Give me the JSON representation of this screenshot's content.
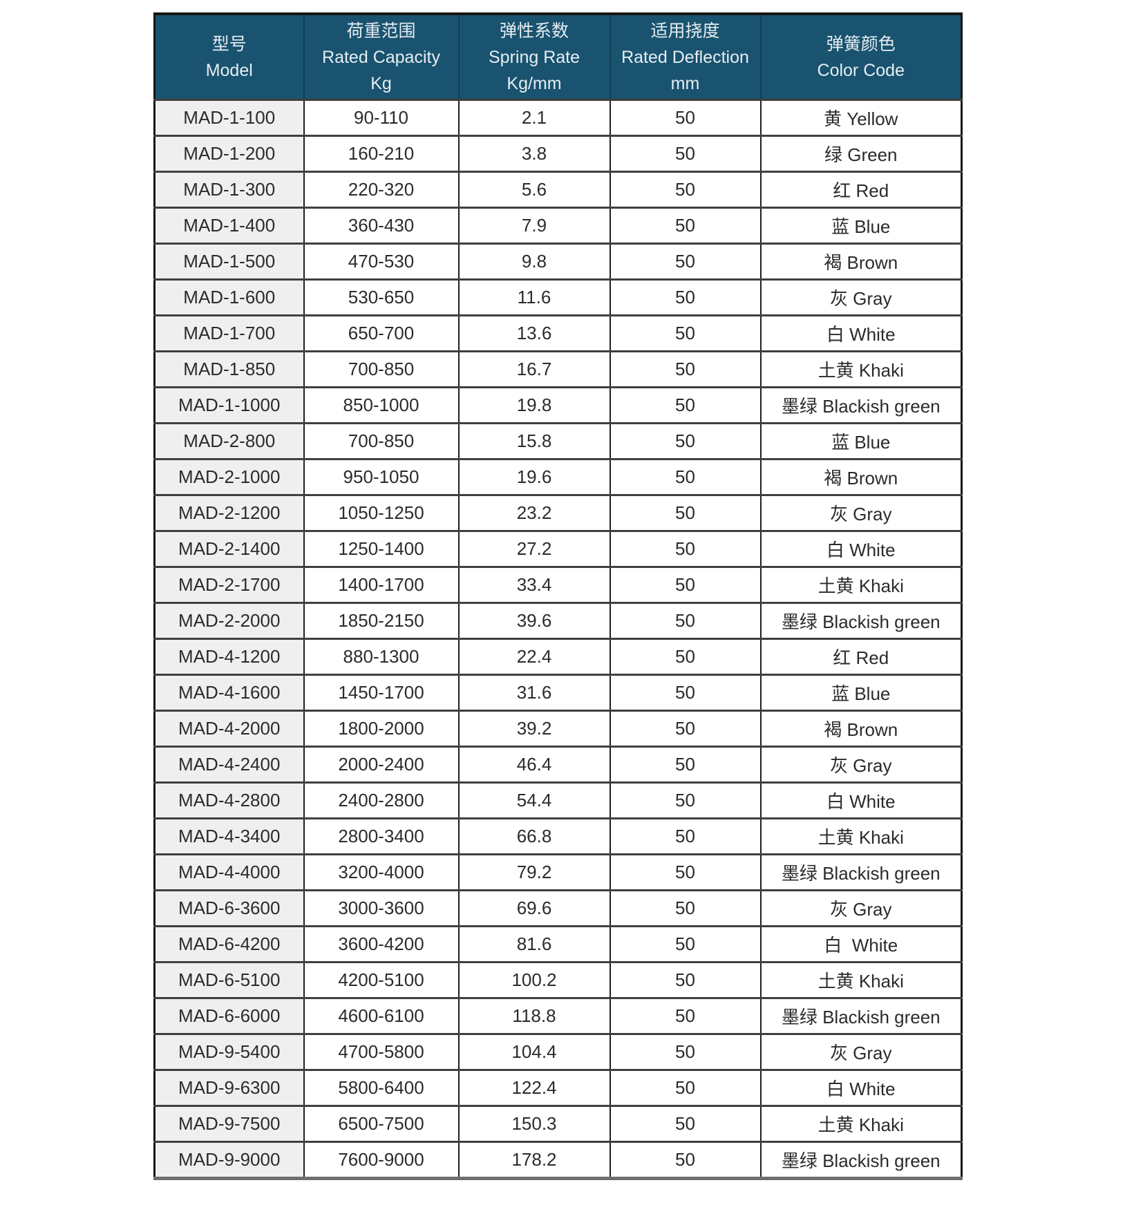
{
  "colors": {
    "header_bg": "#19536f",
    "header_text": "#e6edf2",
    "model_col_bg": "#efefef",
    "cell_bg": "#ffffff",
    "cell_text": "#2b2b2b",
    "grid_vertical": "#1f1f1f",
    "grid_horizontal": "#3f3f3f",
    "outer_border": "#161616",
    "bottom_border": "#6e6e6e"
  },
  "table": {
    "header": {
      "columns": [
        {
          "zh": "型号",
          "en": "Model",
          "unit": ""
        },
        {
          "zh": "荷重范围",
          "en": "Rated Capacity",
          "unit": "Kg"
        },
        {
          "zh": "弹性系数",
          "en": "Spring Rate",
          "unit": "Kg/mm"
        },
        {
          "zh": "适用挠度",
          "en": "Rated Deflection",
          "unit": "mm"
        },
        {
          "zh": "弹簧颜色",
          "en": "Color Code",
          "unit": ""
        }
      ]
    },
    "rows": [
      [
        "MAD-1-100",
        "90-110",
        "2.1",
        "50",
        "黄 Yellow"
      ],
      [
        "MAD-1-200",
        "160-210",
        "3.8",
        "50",
        "绿 Green"
      ],
      [
        "MAD-1-300",
        "220-320",
        "5.6",
        "50",
        "红 Red"
      ],
      [
        "MAD-1-400",
        "360-430",
        "7.9",
        "50",
        "蓝 Blue"
      ],
      [
        "MAD-1-500",
        "470-530",
        "9.8",
        "50",
        "褐 Brown"
      ],
      [
        "MAD-1-600",
        "530-650",
        "11.6",
        "50",
        "灰 Gray"
      ],
      [
        "MAD-1-700",
        "650-700",
        "13.6",
        "50",
        "白 White"
      ],
      [
        "MAD-1-850",
        "700-850",
        "16.7",
        "50",
        "土黄 Khaki"
      ],
      [
        "MAD-1-1000",
        "850-1000",
        "19.8",
        "50",
        "墨绿 Blackish green"
      ],
      [
        "MAD-2-800",
        "700-850",
        "15.8",
        "50",
        "蓝 Blue"
      ],
      [
        "MAD-2-1000",
        "950-1050",
        "19.6",
        "50",
        "褐 Brown"
      ],
      [
        "MAD-2-1200",
        "1050-1250",
        "23.2",
        "50",
        "灰 Gray"
      ],
      [
        "MAD-2-1400",
        "1250-1400",
        "27.2",
        "50",
        "白 White"
      ],
      [
        "MAD-2-1700",
        "1400-1700",
        "33.4",
        "50",
        "土黄 Khaki"
      ],
      [
        "MAD-2-2000",
        "1850-2150",
        "39.6",
        "50",
        "墨绿 Blackish green"
      ],
      [
        "MAD-4-1200",
        "880-1300",
        "22.4",
        "50",
        "红 Red"
      ],
      [
        "MAD-4-1600",
        "1450-1700",
        "31.6",
        "50",
        "蓝 Blue"
      ],
      [
        "MAD-4-2000",
        "1800-2000",
        "39.2",
        "50",
        "褐 Brown"
      ],
      [
        "MAD-4-2400",
        "2000-2400",
        "46.4",
        "50",
        "灰 Gray"
      ],
      [
        "MAD-4-2800",
        "2400-2800",
        "54.4",
        "50",
        "白 White"
      ],
      [
        "MAD-4-3400",
        "2800-3400",
        "66.8",
        "50",
        "土黄 Khaki"
      ],
      [
        "MAD-4-4000",
        "3200-4000",
        "79.2",
        "50",
        "墨绿 Blackish green"
      ],
      [
        "MAD-6-3600",
        "3000-3600",
        "69.6",
        "50",
        "灰 Gray"
      ],
      [
        "MAD-6-4200",
        "3600-4200",
        "81.6",
        "50",
        "白  White"
      ],
      [
        "MAD-6-5100",
        "4200-5100",
        "100.2",
        "50",
        "土黄 Khaki"
      ],
      [
        "MAD-6-6000",
        "4600-6100",
        "118.8",
        "50",
        "墨绿 Blackish green"
      ],
      [
        "MAD-9-5400",
        "4700-5800",
        "104.4",
        "50",
        "灰 Gray"
      ],
      [
        "MAD-9-6300",
        "5800-6400",
        "122.4",
        "50",
        "白 White"
      ],
      [
        "MAD-9-7500",
        "6500-7500",
        "150.3",
        "50",
        "土黄 Khaki"
      ],
      [
        "MAD-9-9000",
        "7600-9000",
        "178.2",
        "50",
        "墨绿 Blackish green"
      ]
    ]
  }
}
